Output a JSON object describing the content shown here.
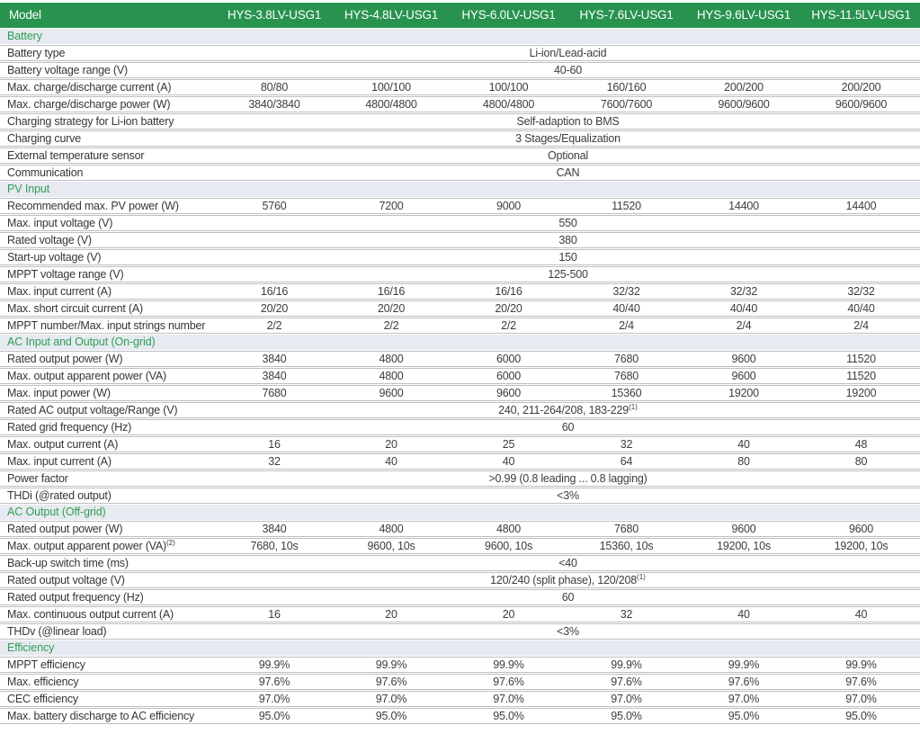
{
  "colors": {
    "header_bg": "#28934f",
    "header_text": "#ffffff",
    "section_bg": "#e7eaf0",
    "section_text": "#2f9e55",
    "line": "#bcc0c3"
  },
  "header": {
    "label": "Model",
    "models": [
      "HYS-3.8LV-USG1",
      "HYS-4.8LV-USG1",
      "HYS-6.0LV-USG1",
      "HYS-7.6LV-USG1",
      "HYS-9.6LV-USG1",
      "HYS-11.5LV-USG1"
    ]
  },
  "sections": [
    {
      "title": "Battery",
      "rows": [
        {
          "label": "Battery type",
          "span": "Li-ion/Lead-acid"
        },
        {
          "label": "Battery voltage range (V)",
          "span": "40-60"
        },
        {
          "label": "Max. charge/discharge current (A)",
          "values": [
            "80/80",
            "100/100",
            "100/100",
            "160/160",
            "200/200",
            "200/200"
          ]
        },
        {
          "label": "Max. charge/discharge power (W)",
          "values": [
            "3840/3840",
            "4800/4800",
            "4800/4800",
            "7600/7600",
            "9600/9600",
            "9600/9600"
          ]
        },
        {
          "label": "Charging strategy for Li-ion battery",
          "span": "Self-adaption to BMS"
        },
        {
          "label": "Charging curve",
          "span": "3 Stages/Equalization"
        },
        {
          "label": "External temperature sensor",
          "span": "Optional"
        },
        {
          "label": "Communication",
          "span": "CAN"
        }
      ]
    },
    {
      "title": "PV Input",
      "rows": [
        {
          "label": "Recommended max. PV power (W)",
          "values": [
            "5760",
            "7200",
            "9000",
            "11520",
            "14400",
            "14400"
          ]
        },
        {
          "label": "Max. input voltage (V)",
          "span": "550"
        },
        {
          "label": "Rated voltage (V)",
          "span": "380"
        },
        {
          "label": "Start-up voltage (V)",
          "span": "150"
        },
        {
          "label": "MPPT voltage range (V)",
          "span": "125-500"
        },
        {
          "label": "Max. input current (A)",
          "values": [
            "16/16",
            "16/16",
            "16/16",
            "32/32",
            "32/32",
            "32/32"
          ]
        },
        {
          "label": "Max. short circuit current (A)",
          "values": [
            "20/20",
            "20/20",
            "20/20",
            "40/40",
            "40/40",
            "40/40"
          ]
        },
        {
          "label": "MPPT number/Max. input strings number",
          "values": [
            "2/2",
            "2/2",
            "2/2",
            "2/4",
            "2/4",
            "2/4"
          ]
        }
      ]
    },
    {
      "title": "AC Input and Output (On-grid)",
      "rows": [
        {
          "label": "Rated output power (W)",
          "values": [
            "3840",
            "4800",
            "6000",
            "7680",
            "9600",
            "11520"
          ]
        },
        {
          "label": "Max. output apparent power (VA)",
          "values": [
            "3840",
            "4800",
            "6000",
            "7680",
            "9600",
            "11520"
          ]
        },
        {
          "label": "Max. input power (W)",
          "values": [
            "7680",
            "9600",
            "9600",
            "15360",
            "19200",
            "19200"
          ]
        },
        {
          "label": "Rated AC output voltage/Range (V)",
          "span": "240, 211-264/208, 183-229",
          "span_sup": "(1)"
        },
        {
          "label": "Rated grid frequency (Hz)",
          "span": "60"
        },
        {
          "label": "Max. output current (A)",
          "values": [
            "16",
            "20",
            "25",
            "32",
            "40",
            "48"
          ]
        },
        {
          "label": "Max. input current (A)",
          "values": [
            "32",
            "40",
            "40",
            "64",
            "80",
            "80"
          ]
        },
        {
          "label": "Power factor",
          "span": ">0.99 (0.8 leading ... 0.8 lagging)"
        },
        {
          "label": "THDi (@rated output)",
          "span": "<3%"
        }
      ]
    },
    {
      "title": "AC Output (Off-grid)",
      "rows": [
        {
          "label": "Rated output power (W)",
          "values": [
            "3840",
            "4800",
            "4800",
            "7680",
            "9600",
            "9600"
          ]
        },
        {
          "label": "Max. output apparent power (VA)",
          "label_sup": "(2)",
          "values": [
            "7680, 10s",
            "9600, 10s",
            "9600, 10s",
            "15360, 10s",
            "19200, 10s",
            "19200, 10s"
          ]
        },
        {
          "label": "Back-up switch time (ms)",
          "span": "<40"
        },
        {
          "label": "Rated output voltage (V)",
          "span": "120/240 (split phase), 120/208",
          "span_sup": "(1)"
        },
        {
          "label": "Rated output frequency (Hz)",
          "span": "60"
        },
        {
          "label": "Max. continuous output current (A)",
          "values": [
            "16",
            "20",
            "20",
            "32",
            "40",
            "40"
          ]
        },
        {
          "label": "THDv (@linear load)",
          "span": "<3%"
        }
      ]
    },
    {
      "title": "Efficiency",
      "rows": [
        {
          "label": "MPPT efficiency",
          "values": [
            "99.9%",
            "99.9%",
            "99.9%",
            "99.9%",
            "99.9%",
            "99.9%"
          ]
        },
        {
          "label": "Max. efficiency",
          "values": [
            "97.6%",
            "97.6%",
            "97.6%",
            "97.6%",
            "97.6%",
            "97.6%"
          ]
        },
        {
          "label": "CEC efficiency",
          "values": [
            "97.0%",
            "97.0%",
            "97.0%",
            "97.0%",
            "97.0%",
            "97.0%"
          ]
        },
        {
          "label": "Max. battery discharge to AC efficiency",
          "values": [
            "95.0%",
            "95.0%",
            "95.0%",
            "95.0%",
            "95.0%",
            "95.0%"
          ]
        }
      ]
    }
  ]
}
